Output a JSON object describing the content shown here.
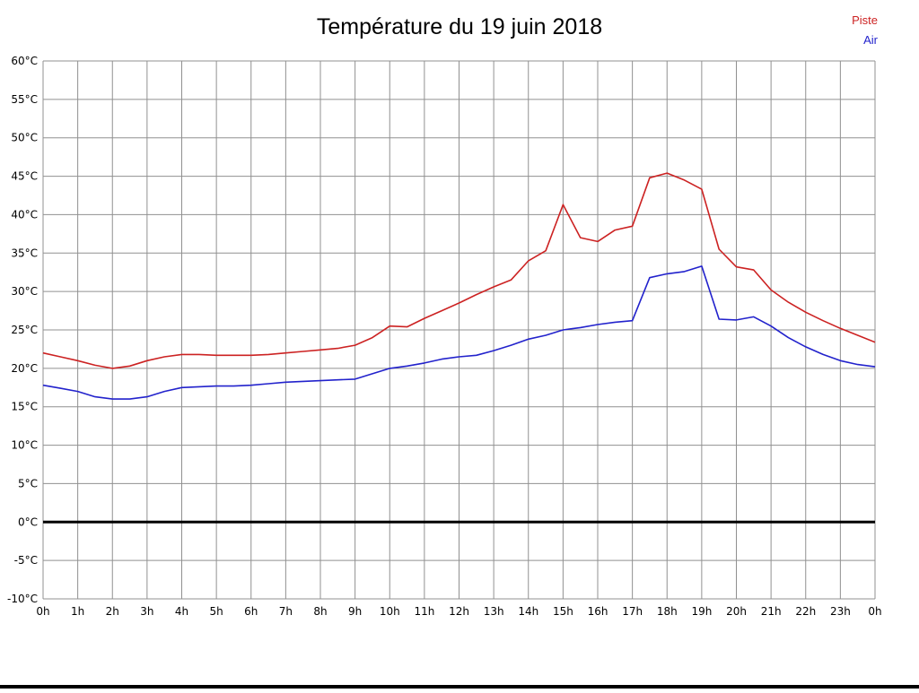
{
  "title": "Température du 19 juin 2018",
  "legend": [
    {
      "label": "Piste",
      "color": "#cc2222"
    },
    {
      "label": "Air",
      "color": "#2222cc"
    }
  ],
  "chart_data": {
    "type": "line",
    "title": "Température du 19 juin 2018",
    "xlabel": "",
    "ylabel": "",
    "ylim": [
      -10,
      60
    ],
    "ytick_step": 5,
    "grid": true,
    "grid_color": "#909090",
    "zero_line": true,
    "zero_line_color": "#000000",
    "legend_position": "top-right",
    "xticks": [
      "0h",
      "1h",
      "2h",
      "3h",
      "4h",
      "5h",
      "6h",
      "7h",
      "8h",
      "9h",
      "10h",
      "11h",
      "12h",
      "13h",
      "14h",
      "15h",
      "16h",
      "17h",
      "18h",
      "19h",
      "20h",
      "21h",
      "22h",
      "23h",
      "0h"
    ],
    "yticks": [
      "60°C",
      "55°C",
      "50°C",
      "45°C",
      "40°C",
      "35°C",
      "30°C",
      "25°C",
      "20°C",
      "15°C",
      "10°C",
      "5°C",
      "0°C",
      "-5°C",
      "-10°C"
    ],
    "x": [
      0,
      0.5,
      1,
      1.5,
      2,
      2.5,
      3,
      3.5,
      4,
      4.5,
      5,
      5.5,
      6,
      6.5,
      7,
      7.5,
      8,
      8.5,
      9,
      9.5,
      10,
      10.5,
      11,
      11.5,
      12,
      12.5,
      13,
      13.5,
      14,
      14.5,
      15,
      15.5,
      16,
      16.5,
      17,
      17.5,
      18,
      18.5,
      19,
      19.5,
      20,
      20.5,
      21,
      21.5,
      22,
      22.5,
      23,
      23.5,
      24
    ],
    "series": [
      {
        "name": "Piste",
        "color": "#cc2222",
        "values": [
          22.0,
          21.5,
          21.0,
          20.4,
          20.0,
          20.3,
          21.0,
          21.5,
          21.8,
          21.8,
          21.7,
          21.7,
          21.7,
          21.8,
          22.0,
          22.2,
          22.4,
          22.6,
          23.0,
          24.0,
          25.5,
          25.4,
          26.5,
          27.5,
          28.5,
          29.6,
          30.6,
          31.5,
          34.0,
          35.3,
          41.3,
          37.0,
          36.5,
          38.0,
          38.5,
          44.8,
          45.4,
          44.5,
          43.3,
          35.5,
          33.2,
          32.8,
          30.2,
          28.6,
          27.3,
          26.2,
          25.2,
          24.3,
          23.4
        ]
      },
      {
        "name": "Air",
        "color": "#2222cc",
        "values": [
          17.8,
          17.4,
          17.0,
          16.3,
          16.0,
          16.0,
          16.3,
          17.0,
          17.5,
          17.6,
          17.7,
          17.7,
          17.8,
          18.0,
          18.2,
          18.3,
          18.4,
          18.5,
          18.6,
          19.3,
          20.0,
          20.3,
          20.7,
          21.2,
          21.5,
          21.7,
          22.3,
          23.0,
          23.8,
          24.3,
          25.0,
          25.3,
          25.7,
          26.0,
          26.2,
          31.8,
          32.3,
          32.6,
          33.3,
          26.4,
          26.3,
          26.7,
          25.5,
          24.0,
          22.8,
          21.8,
          21.0,
          20.5,
          20.2
        ]
      }
    ]
  }
}
